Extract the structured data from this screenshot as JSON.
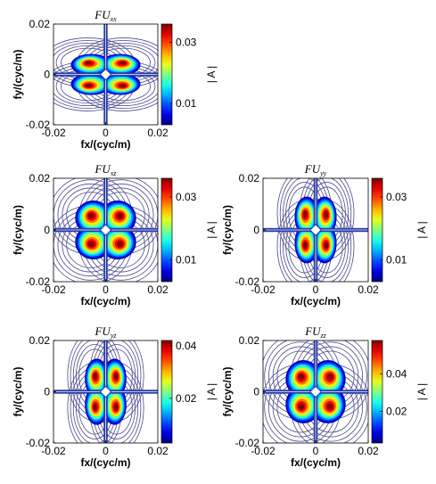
{
  "chart_data": [
    {
      "type": "heatmap",
      "title": "FU",
      "title_sub": "xx",
      "xlabel": "fx/(cyc/m)",
      "ylabel": "fy/(cyc/m)",
      "xlim": [
        -0.02,
        0.02
      ],
      "ylim": [
        -0.02,
        0.02
      ],
      "xticks": [
        "-0.02",
        "0",
        "0.02"
      ],
      "yticks": [
        "0.02",
        "0",
        "-0.02"
      ],
      "colorbar": {
        "label": "| A |",
        "range": [
          0.003,
          0.036
        ],
        "ticks": [
          0.03,
          0.01
        ],
        "tick_labels": [
          "0.03",
          "0.01"
        ]
      },
      "pattern": "lobes-horizontal",
      "peak": 0.036
    },
    {
      "type": "heatmap",
      "title": "FU",
      "title_sub": "xz",
      "xlabel": "fx/(cyc/m)",
      "ylabel": "fy/(cyc/m)",
      "xlim": [
        -0.02,
        0.02
      ],
      "ylim": [
        -0.02,
        0.02
      ],
      "xticks": [
        "-0.02",
        "0",
        "0.02"
      ],
      "yticks": [
        "0.02",
        "0",
        "-0.02"
      ],
      "colorbar": {
        "label": "| A |",
        "range": [
          0.003,
          0.036
        ],
        "ticks": [
          0.03,
          0.01
        ],
        "tick_labels": [
          "0.03",
          "0.01"
        ]
      },
      "pattern": "lobes-quad",
      "peak": 0.036
    },
    {
      "type": "heatmap",
      "title": "FU",
      "title_sub": "yy",
      "xlabel": "fx/(cyc/m)",
      "ylabel": "fy/(cyc/m)",
      "xlim": [
        -0.02,
        0.02
      ],
      "ylim": [
        -0.02,
        0.02
      ],
      "xticks": [
        "-0.02",
        "0",
        "0.02"
      ],
      "yticks": [
        "0.02",
        "0",
        "-0.02"
      ],
      "colorbar": {
        "label": "| A |",
        "range": [
          0.003,
          0.036
        ],
        "ticks": [
          0.03,
          0.01
        ],
        "tick_labels": [
          "0.03",
          "0.01"
        ]
      },
      "pattern": "lobes-vertical",
      "peak": 0.036
    },
    {
      "type": "heatmap",
      "title": "FU",
      "title_sub": "yz",
      "xlabel": "fx/(cyc/m)",
      "ylabel": "fy/(cyc/m)",
      "xlim": [
        -0.02,
        0.02
      ],
      "ylim": [
        -0.02,
        0.02
      ],
      "xticks": [
        "-0.02",
        "0",
        "0.02"
      ],
      "yticks": [
        "0.02",
        "0",
        "-0.02"
      ],
      "colorbar": {
        "label": "| A |",
        "range": [
          0.003,
          0.042
        ],
        "ticks": [
          0.04,
          0.02
        ],
        "tick_labels": [
          "0.04",
          "0.02"
        ]
      },
      "pattern": "lobes-vertical",
      "peak": 0.042
    },
    {
      "type": "heatmap",
      "title": "FU",
      "title_sub": "zz",
      "xlabel": "fx/(cyc/m)",
      "ylabel": "fy/(cyc/m)",
      "xlim": [
        -0.02,
        0.02
      ],
      "ylim": [
        -0.02,
        0.02
      ],
      "xticks": [
        "-0.02",
        "0",
        "0.02"
      ],
      "yticks": [
        "0.02",
        "0",
        "-0.02"
      ],
      "colorbar": {
        "label": "| A |",
        "range": [
          0.003,
          0.058
        ],
        "ticks": [
          0.04,
          0.02
        ],
        "tick_labels": [
          "0.04",
          "0.02"
        ]
      },
      "pattern": "ring-quad",
      "peak": 0.058
    }
  ]
}
